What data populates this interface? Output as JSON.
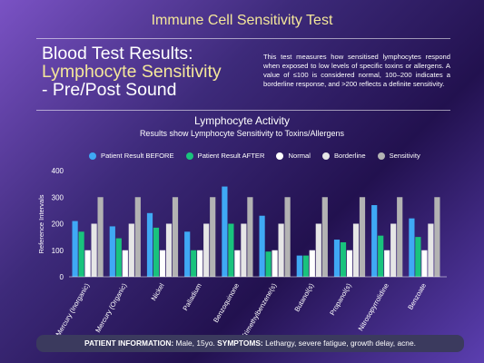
{
  "header": {
    "title": "Immune Cell Sensitivity Test"
  },
  "headline": {
    "line1": "Blood Test Results:",
    "line2": "Lymphocyte Sensitivity",
    "line3": "- Pre/Post Sound"
  },
  "description": "This test measures how sensitised lymphocytes respond when exposed to low levels of specific toxins or allergens. A value of ≤100 is considered normal, 100–200 indicates a borderline response, and >200 reflects a definite sensitivity.",
  "colors": {
    "before": "#3fa9f5",
    "after": "#19c37d",
    "normal": "#ffffff",
    "borderline": "#e6e6e6",
    "sensitivity": "#b3b3b3",
    "title_accent": "#f4e79a"
  },
  "chart_data": {
    "type": "bar",
    "title": "Lymphocyte Activity",
    "subtitle": "Results show Lymphocyte Sensitivity to Toxins/Allergens",
    "ylabel": "Reference Intervals",
    "xlabel": "",
    "ylim": [
      0,
      400
    ],
    "yticks": [
      0,
      100,
      200,
      300,
      400
    ],
    "legend_position": "top",
    "grid": false,
    "categories": [
      "Mercury (Inorganic)",
      "Mercury (Organic)",
      "Nickel",
      "Palladium",
      "Benzoquinone",
      "Trimethylbenzene(s)",
      "Butanol(s)",
      "Propanol(s)",
      "Nitrosopyrrolidine",
      "Benzoate"
    ],
    "series": [
      {
        "name": "Patient Result BEFORE",
        "values": [
          210,
          190,
          240,
          170,
          340,
          230,
          80,
          140,
          270,
          220
        ]
      },
      {
        "name": "Patient Result AFTER",
        "values": [
          170,
          145,
          185,
          100,
          200,
          95,
          80,
          130,
          155,
          150
        ]
      },
      {
        "name": "Normal",
        "values": [
          100,
          100,
          100,
          100,
          100,
          100,
          100,
          100,
          100,
          100
        ]
      },
      {
        "name": "Borderline",
        "values": [
          200,
          200,
          200,
          200,
          200,
          200,
          200,
          200,
          200,
          200
        ]
      },
      {
        "name": "Sensitivity",
        "values": [
          300,
          300,
          300,
          300,
          300,
          300,
          300,
          300,
          300,
          300
        ]
      }
    ]
  },
  "footer": {
    "patient_label": "PATIENT INFORMATION:",
    "patient_value": "Male, 15yo.",
    "symptoms_label": "SYMPTOMS:",
    "symptoms_value": "Lethargy, severe fatigue, growth delay, acne."
  }
}
